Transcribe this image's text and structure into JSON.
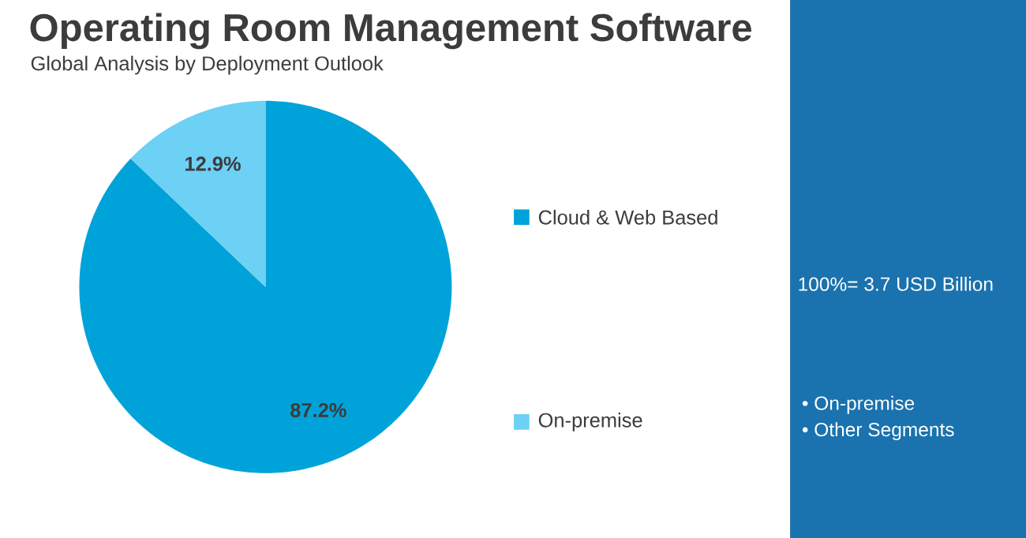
{
  "chart_data": {
    "type": "pie",
    "title": "Operating Room Management Software",
    "subtitle": "Global Analysis by Deployment Outlook",
    "categories": [
      "Cloud & Web Based",
      "On-premise"
    ],
    "values": [
      87.2,
      12.9
    ],
    "colors": [
      "#00a3d9",
      "#6dd0f5"
    ],
    "value_labels": [
      "87.2%",
      "12.9%"
    ],
    "legend": "right",
    "annotations": [
      "100%= 3.7 USD Billion",
      "• On-premise",
      "• Other Segments"
    ]
  }
}
